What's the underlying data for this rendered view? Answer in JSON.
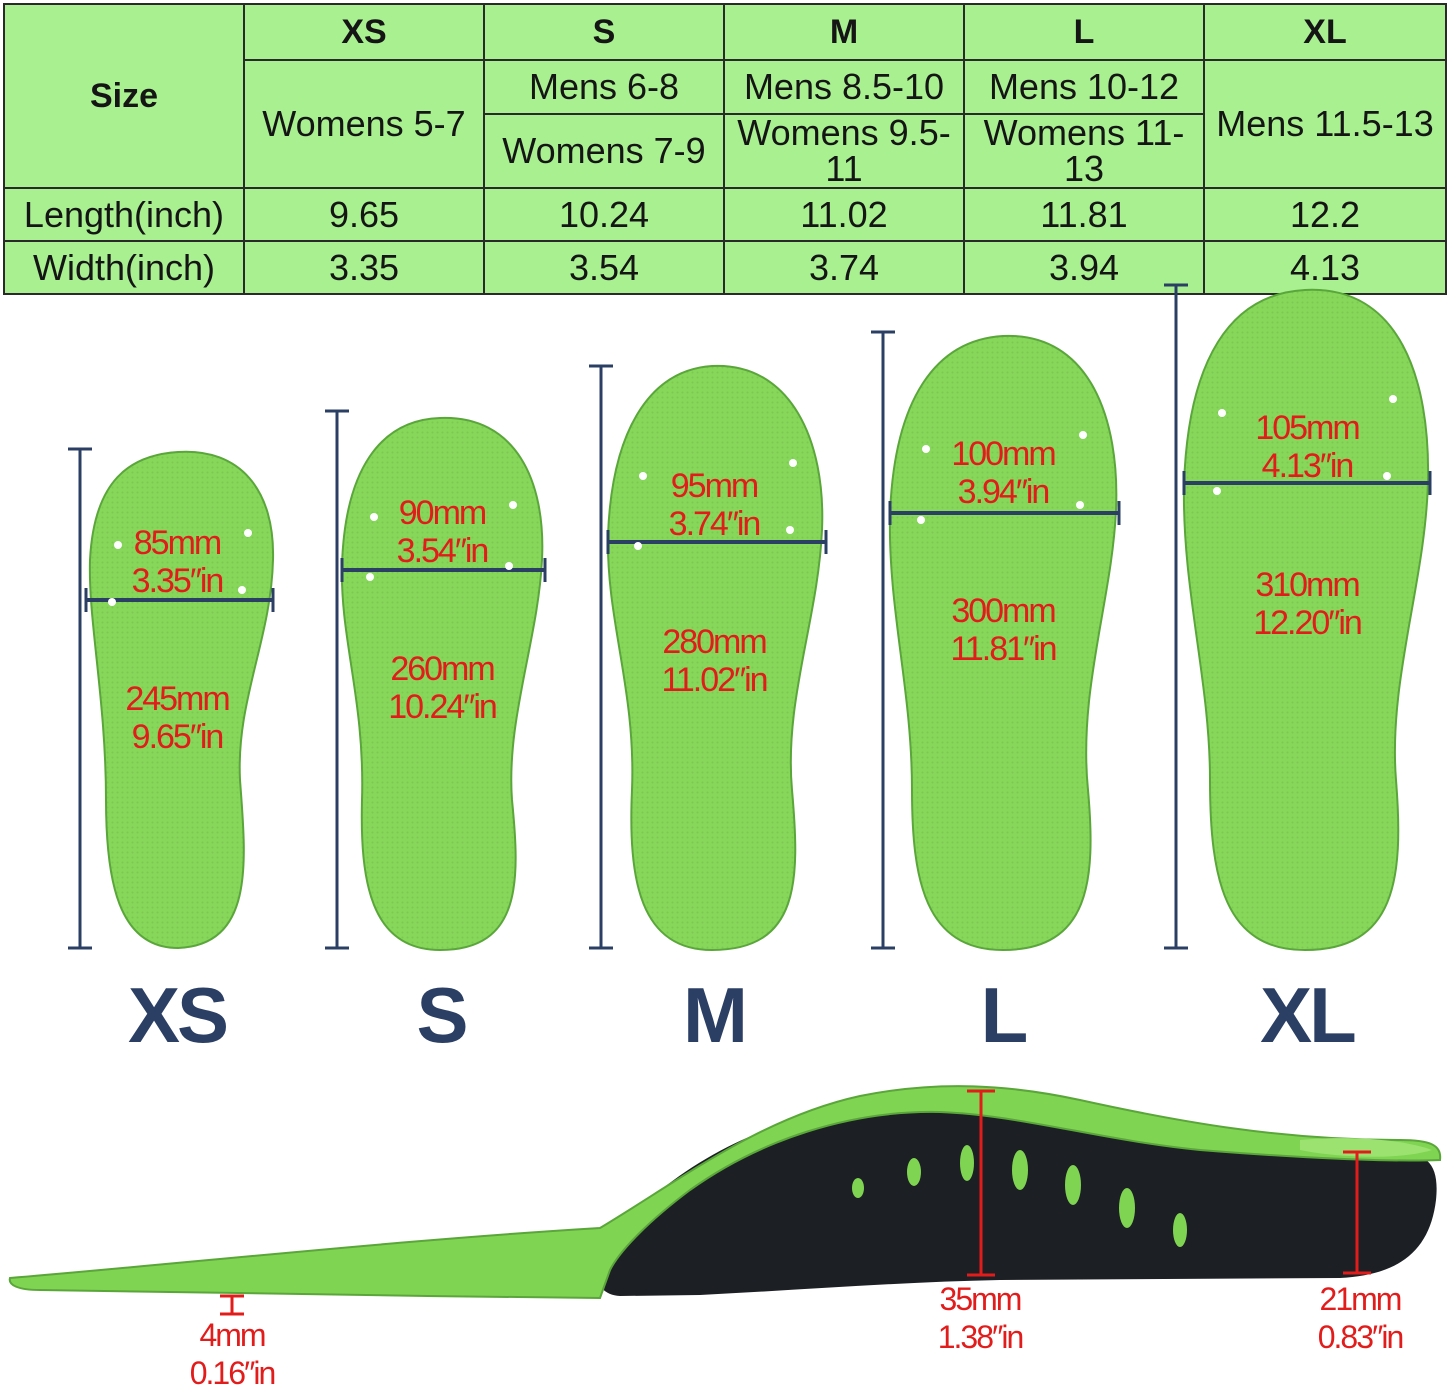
{
  "table": {
    "size_label": "Size",
    "length_label": "Length(inch)",
    "width_label": "Width(inch)",
    "columns": [
      {
        "size": "XS",
        "fit1": "Womens 5-7",
        "fit2": "",
        "length": "9.65",
        "width": "3.35"
      },
      {
        "size": "S",
        "fit1": "Mens 6-8",
        "fit2": "Womens 7-9",
        "length": "10.24",
        "width": "3.54"
      },
      {
        "size": "M",
        "fit1": "Mens 8.5-10",
        "fit2": "Womens 9.5-11",
        "length": "11.02",
        "width": "3.74"
      },
      {
        "size": "L",
        "fit1": "Mens 10-12",
        "fit2": "Womens 11-13",
        "length": "11.81",
        "width": "3.94"
      },
      {
        "size": "XL",
        "fit1": "Mens 11.5-13",
        "fit2": "",
        "length": "12.2",
        "width": "4.13"
      }
    ]
  },
  "insoles": [
    {
      "size": "XS",
      "width_mm": "85mm",
      "width_in": "3.35″in",
      "length_mm": "245mm",
      "length_in": "9.65″in"
    },
    {
      "size": "S",
      "width_mm": "90mm",
      "width_in": "3.54″in",
      "length_mm": "260mm",
      "length_in": "10.24″in"
    },
    {
      "size": "M",
      "width_mm": "95mm",
      "width_in": "3.74″in",
      "length_mm": "280mm",
      "length_in": "11.02″in"
    },
    {
      "size": "L",
      "width_mm": "100mm",
      "width_in": "3.94″in",
      "length_mm": "300mm",
      "length_in": "11.81″in"
    },
    {
      "size": "XL",
      "width_mm": "105mm",
      "width_in": "4.13″in",
      "length_mm": "310mm",
      "length_in": "12.20″in"
    }
  ],
  "side_view": {
    "toe_mm": "4mm",
    "toe_in": "0.16″in",
    "arch_mm": "35mm",
    "arch_in": "1.38″in",
    "heel_mm": "21mm",
    "heel_in": "0.83″in"
  },
  "colors": {
    "insole_green": "#86d75a",
    "table_green": "#a8f090",
    "label_red": "#e21b1b",
    "ruler_navy": "#2b3f64",
    "base_black": "#1c1f24"
  }
}
